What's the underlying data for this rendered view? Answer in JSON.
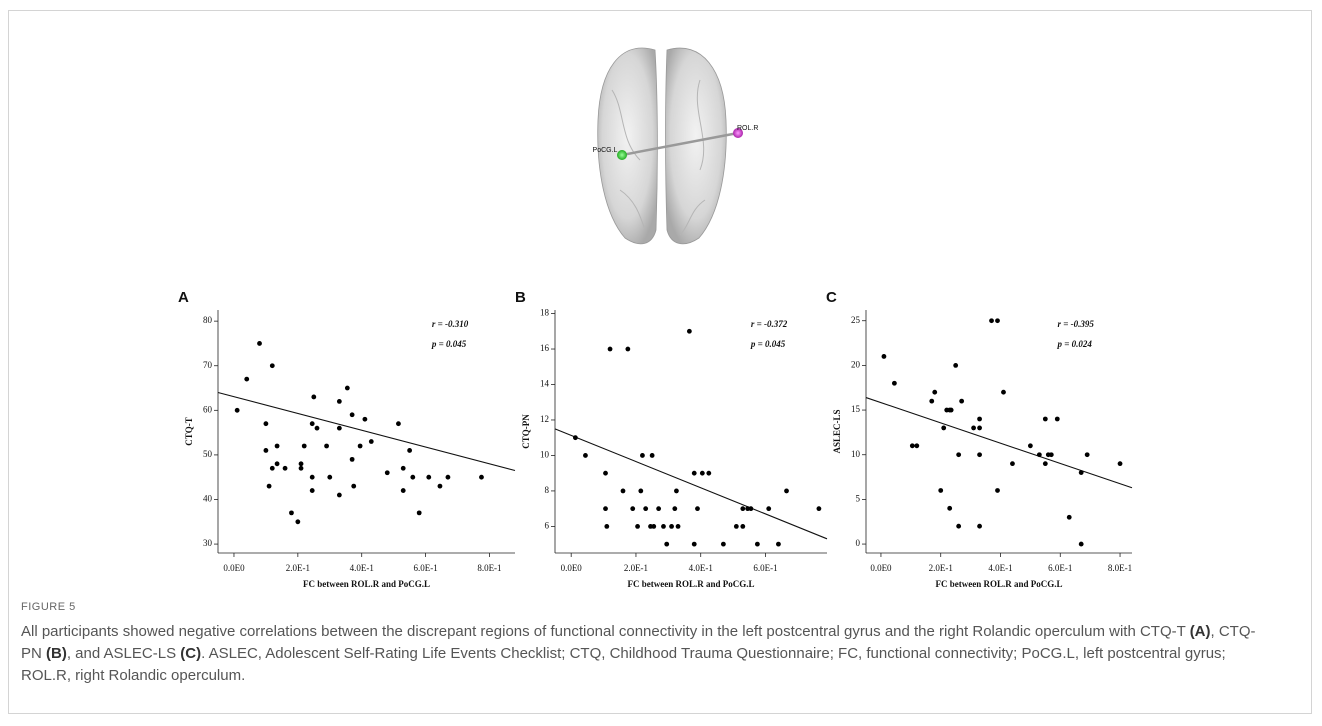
{
  "figure": {
    "label": "FIGURE 5",
    "caption": [
      "All participants showed negative correlations between the discrepant regions of functional connectivity in the left postcentral gyrus and the right Rolandic operculum with CTQ-T ",
      "(A)",
      ", CTQ-PN ",
      "(B)",
      ", and ASLEC-LS ",
      "(C)",
      ". ASLEC, Adolescent Self-Rating Life Events Checklist; CTQ, Childhood Trauma Questionnaire; FC, functional connectivity; PoCG.L, left postcentral gyrus; ROL.R, right Rolandic operculum."
    ]
  },
  "brain": {
    "labels": [
      "PoCG.L",
      "ROL.R"
    ]
  },
  "chart_data": [
    {
      "type": "scatter",
      "panel": "A",
      "xlabel": "FC between ROL.R and PoCG.L",
      "ylabel": "CTQ-T",
      "annotations": [
        "r = -0.310",
        "p = 0.045"
      ],
      "x": [
        0.01,
        0.04,
        0.12,
        0.08,
        0.1,
        0.1,
        0.11,
        0.135,
        0.135,
        0.12,
        0.16,
        0.18,
        0.2,
        0.21,
        0.21,
        0.22,
        0.245,
        0.25,
        0.245,
        0.26,
        0.245,
        0.29,
        0.3,
        0.33,
        0.33,
        0.33,
        0.355,
        0.37,
        0.37,
        0.375,
        0.395,
        0.41,
        0.43,
        0.48,
        0.515,
        0.53,
        0.53,
        0.55,
        0.56,
        0.58,
        0.61,
        0.645,
        0.67,
        0.775
      ],
      "values": [
        60,
        67,
        70,
        75,
        57,
        51,
        43,
        52,
        48,
        47,
        47,
        37,
        35,
        47,
        48,
        52,
        42,
        63,
        57,
        56,
        45,
        52,
        45,
        62,
        56,
        41,
        65,
        59,
        49,
        43,
        52,
        58,
        53,
        46,
        57,
        47,
        42,
        51,
        45,
        37,
        45,
        43,
        45,
        45
      ],
      "trend": {
        "x": [
          -0.05,
          0.88
        ],
        "y": [
          64,
          46.5
        ]
      },
      "xlim": [
        -0.05,
        0.88
      ],
      "ylim": [
        28,
        82.5
      ],
      "xticks": [
        {
          "value": 0,
          "label": "0.0E0"
        },
        {
          "value": 0.2,
          "label": "2.0E-1"
        },
        {
          "value": 0.4,
          "label": "4.0E-1"
        },
        {
          "value": 0.6,
          "label": "6.0E-1"
        },
        {
          "value": 0.8,
          "label": "8.0E-1"
        }
      ],
      "yticks": [
        30,
        40,
        50,
        60,
        70,
        80
      ],
      "color": "#000000"
    },
    {
      "type": "scatter",
      "panel": "B",
      "xlabel": "FC between ROL.R and PoCG.L",
      "ylabel": "CTQ-PN",
      "annotations": [
        "r = -0.372",
        "p = 0.045"
      ],
      "x": [
        0.013,
        0.044,
        0.106,
        0.106,
        0.11,
        0.12,
        0.175,
        0.16,
        0.19,
        0.205,
        0.215,
        0.22,
        0.23,
        0.245,
        0.25,
        0.255,
        0.27,
        0.285,
        0.295,
        0.31,
        0.32,
        0.325,
        0.33,
        0.365,
        0.38,
        0.38,
        0.39,
        0.405,
        0.425,
        0.47,
        0.51,
        0.53,
        0.53,
        0.545,
        0.555,
        0.575,
        0.61,
        0.64,
        0.665,
        0.765
      ],
      "values": [
        11,
        10,
        9,
        7,
        6,
        16,
        16,
        8,
        7,
        6,
        8,
        10,
        7,
        6,
        10,
        6,
        7,
        6,
        5,
        6,
        7,
        8,
        6,
        17,
        5,
        9,
        7,
        9,
        9,
        5,
        6,
        7,
        6,
        7,
        7,
        5,
        7,
        5,
        8,
        7
      ],
      "trend": {
        "x": [
          -0.05,
          0.79
        ],
        "y": [
          11.5,
          5.3
        ]
      },
      "xlim": [
        -0.05,
        0.79
      ],
      "ylim": [
        4.5,
        18.2
      ],
      "xticks": [
        {
          "value": 0,
          "label": "0.0E0"
        },
        {
          "value": 0.2,
          "label": "2.0E-1"
        },
        {
          "value": 0.4,
          "label": "4.0E-1"
        },
        {
          "value": 0.6,
          "label": "6.0E-1"
        }
      ],
      "yticks": [
        6,
        8,
        10,
        12,
        14,
        16,
        18
      ],
      "color": "#000000"
    },
    {
      "type": "scatter",
      "panel": "C",
      "xlabel": "FC between ROL.R and PoCG.L",
      "ylabel": "ASLEC-LS",
      "annotations": [
        "r = -0.395",
        "p = 0.024"
      ],
      "x": [
        0.01,
        0.045,
        0.105,
        0.12,
        0.17,
        0.18,
        0.2,
        0.21,
        0.22,
        0.23,
        0.23,
        0.235,
        0.25,
        0.26,
        0.26,
        0.27,
        0.31,
        0.33,
        0.33,
        0.33,
        0.33,
        0.37,
        0.39,
        0.39,
        0.41,
        0.44,
        0.5,
        0.53,
        0.55,
        0.55,
        0.56,
        0.57,
        0.59,
        0.63,
        0.67,
        0.67,
        0.69,
        0.8
      ],
      "values": [
        21,
        18,
        11,
        11,
        16,
        17,
        6,
        13,
        15,
        15,
        4,
        15,
        20,
        10,
        2,
        16,
        13,
        14,
        13,
        10,
        2,
        25,
        25,
        6,
        17,
        9,
        11,
        10,
        9,
        14,
        10,
        10,
        14,
        3,
        8,
        0,
        10,
        9
      ],
      "trend": {
        "x": [
          -0.05,
          0.84
        ],
        "y": [
          16.4,
          6.3
        ]
      },
      "xlim": [
        -0.05,
        0.84
      ],
      "ylim": [
        -1,
        26.2
      ],
      "xticks": [
        {
          "value": 0,
          "label": "0.0E0"
        },
        {
          "value": 0.2,
          "label": "2.0E-1"
        },
        {
          "value": 0.4,
          "label": "4.0E-1"
        },
        {
          "value": 0.6,
          "label": "6.0E-1"
        },
        {
          "value": 0.8,
          "label": "8.0E-1"
        }
      ],
      "yticks": [
        0,
        5,
        10,
        15,
        20,
        25
      ],
      "color": "#000000"
    }
  ]
}
